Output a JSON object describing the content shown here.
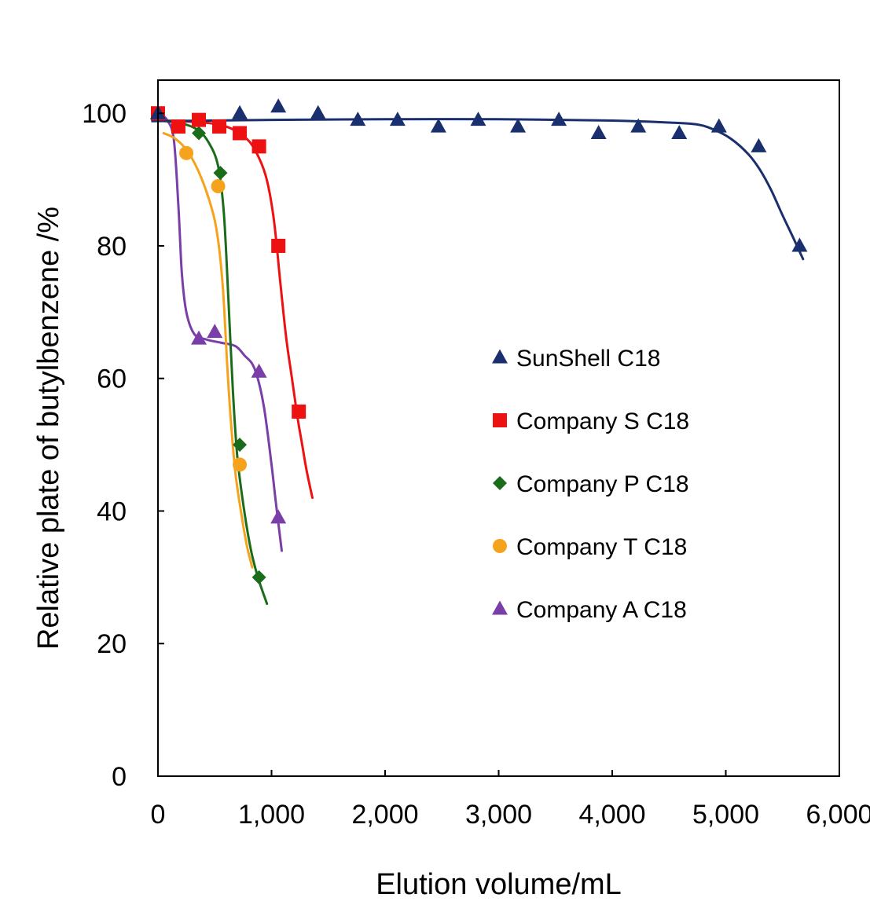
{
  "chart_data": {
    "type": "scatter",
    "title": "",
    "xlabel": "Elution volume/mL",
    "ylabel": "Relative plate of butylbenzene /%",
    "xlim": [
      0,
      6000
    ],
    "ylim": [
      0,
      105
    ],
    "xticks": [
      0,
      1000,
      2000,
      3000,
      4000,
      5000,
      6000
    ],
    "xtick_labels": [
      "0",
      "1,000",
      "2,000",
      "3,000",
      "4,000",
      "5,000",
      "6,000"
    ],
    "yticks": [
      0,
      20,
      40,
      60,
      80,
      100
    ],
    "ytick_labels": [
      "0",
      "20",
      "40",
      "60",
      "80",
      "100"
    ],
    "grid": false,
    "legend_position": "right-center",
    "series": [
      {
        "name": "SunShell C18",
        "color": "#1a2f6e",
        "marker": "triangle",
        "points": [
          [
            0,
            100
          ],
          [
            720,
            100
          ],
          [
            1060,
            101
          ],
          [
            1410,
            100
          ],
          [
            1760,
            99
          ],
          [
            2110,
            99
          ],
          [
            2470,
            98
          ],
          [
            2820,
            99
          ],
          [
            3170,
            98
          ],
          [
            3530,
            99
          ],
          [
            3880,
            97
          ],
          [
            4230,
            98
          ],
          [
            4590,
            97
          ],
          [
            4940,
            98
          ],
          [
            5290,
            95
          ],
          [
            5650,
            80
          ]
        ],
        "fit": [
          [
            -50,
            98.8
          ],
          [
            1000,
            99
          ],
          [
            2000,
            99.1
          ],
          [
            3000,
            99.1
          ],
          [
            4000,
            98.9
          ],
          [
            4500,
            98.6
          ],
          [
            4750,
            98.3
          ],
          [
            4900,
            97.5
          ],
          [
            5050,
            96.1
          ],
          [
            5200,
            93.8
          ],
          [
            5300,
            91.5
          ],
          [
            5400,
            88.4
          ],
          [
            5500,
            84.6
          ],
          [
            5600,
            81
          ],
          [
            5680,
            78
          ]
        ]
      },
      {
        "name": "Company S C18",
        "color": "#ee1111",
        "marker": "square",
        "points": [
          [
            0,
            100
          ],
          [
            180,
            98
          ],
          [
            360,
            99
          ],
          [
            540,
            98
          ],
          [
            720,
            97
          ],
          [
            890,
            95
          ],
          [
            1060,
            80
          ],
          [
            1240,
            55
          ]
        ],
        "fit": [
          [
            -50,
            99
          ],
          [
            400,
            98.6
          ],
          [
            600,
            98
          ],
          [
            750,
            96.6
          ],
          [
            850,
            94.6
          ],
          [
            950,
            90.5
          ],
          [
            1020,
            84
          ],
          [
            1080,
            74
          ],
          [
            1130,
            66
          ],
          [
            1180,
            60
          ],
          [
            1230,
            54
          ],
          [
            1270,
            50
          ],
          [
            1310,
            46
          ],
          [
            1360,
            42
          ]
        ]
      },
      {
        "name": "Company P C18",
        "color": "#1a6b1a",
        "marker": "diamond",
        "points": [
          [
            0,
            100
          ],
          [
            180,
            98
          ],
          [
            360,
            97
          ],
          [
            550,
            91
          ],
          [
            720,
            50
          ],
          [
            890,
            30
          ]
        ],
        "fit": [
          [
            -50,
            99
          ],
          [
            200,
            98.5
          ],
          [
            350,
            97.5
          ],
          [
            450,
            95.5
          ],
          [
            530,
            92
          ],
          [
            580,
            85
          ],
          [
            620,
            72
          ],
          [
            660,
            58
          ],
          [
            700,
            48
          ],
          [
            760,
            40
          ],
          [
            820,
            34
          ],
          [
            880,
            30
          ],
          [
            960,
            26
          ]
        ]
      },
      {
        "name": "Company T C18",
        "color": "#f5a31c",
        "marker": "circle",
        "points": [
          [
            0,
            100
          ],
          [
            250,
            94
          ],
          [
            530,
            89
          ],
          [
            720,
            47
          ]
        ],
        "fit": [
          [
            50,
            97
          ],
          [
            150,
            96.2
          ],
          [
            250,
            94.5
          ],
          [
            350,
            91.5
          ],
          [
            450,
            87
          ],
          [
            520,
            82
          ],
          [
            570,
            74
          ],
          [
            610,
            62
          ],
          [
            640,
            54
          ],
          [
            680,
            46
          ],
          [
            730,
            40
          ],
          [
            780,
            35
          ],
          [
            830,
            31.5
          ]
        ]
      },
      {
        "name": "Company A C18",
        "color": "#7a3ea8",
        "marker": "triangle",
        "points": [
          [
            0,
            100
          ],
          [
            360,
            66
          ],
          [
            500,
            67
          ],
          [
            890,
            61
          ],
          [
            1060,
            39
          ]
        ],
        "fit": [
          [
            0,
            100
          ],
          [
            80,
            99
          ],
          [
            140,
            96
          ],
          [
            180,
            86
          ],
          [
            210,
            76
          ],
          [
            250,
            70
          ],
          [
            320,
            66.7
          ],
          [
            420,
            65.9
          ],
          [
            550,
            65.4
          ],
          [
            680,
            64.9
          ],
          [
            760,
            63.5
          ],
          [
            850,
            61.5
          ],
          [
            930,
            56
          ],
          [
            1000,
            47
          ],
          [
            1040,
            41
          ],
          [
            1090,
            34
          ]
        ]
      }
    ]
  }
}
